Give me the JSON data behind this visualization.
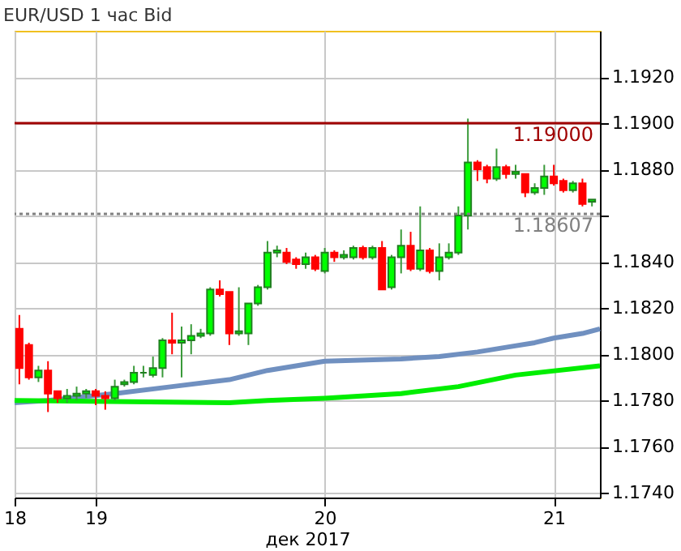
{
  "chart_data": {
    "type": "candlestick",
    "title": "EUR/USD 1 час Bid",
    "xlabel": "дек 2017",
    "x": [
      "2017-12-18T16:00",
      "2017-12-18T17:00",
      "2017-12-18T18:00",
      "2017-12-18T19:00",
      "2017-12-18T20:00",
      "2017-12-18T21:00",
      "2017-12-18T22:00",
      "2017-12-18T23:00",
      "2017-12-19T00:00",
      "2017-12-19T01:00",
      "2017-12-19T02:00",
      "2017-12-19T03:00",
      "2017-12-19T04:00",
      "2017-12-19T05:00",
      "2017-12-19T06:00",
      "2017-12-19T07:00",
      "2017-12-19T08:00",
      "2017-12-19T09:00",
      "2017-12-19T10:00",
      "2017-12-19T11:00",
      "2017-12-19T12:00",
      "2017-12-19T13:00",
      "2017-12-19T14:00",
      "2017-12-19T15:00",
      "2017-12-19T16:00",
      "2017-12-19T17:00",
      "2017-12-19T18:00",
      "2017-12-19T19:00",
      "2017-12-19T20:00",
      "2017-12-19T21:00",
      "2017-12-19T22:00",
      "2017-12-19T23:00",
      "2017-12-20T00:00",
      "2017-12-20T01:00",
      "2017-12-20T02:00",
      "2017-12-20T03:00",
      "2017-12-20T04:00",
      "2017-12-20T05:00",
      "2017-12-20T06:00",
      "2017-12-20T07:00",
      "2017-12-20T08:00",
      "2017-12-20T09:00",
      "2017-12-20T10:00",
      "2017-12-20T11:00",
      "2017-12-20T12:00",
      "2017-12-20T13:00",
      "2017-12-20T14:00",
      "2017-12-20T15:00",
      "2017-12-20T16:00",
      "2017-12-20T17:00",
      "2017-12-20T18:00",
      "2017-12-20T19:00",
      "2017-12-20T20:00",
      "2017-12-20T21:00",
      "2017-12-20T22:00",
      "2017-12-20T23:00",
      "2017-12-21T00:00",
      "2017-12-21T01:00",
      "2017-12-21T02:00",
      "2017-12-21T03:00",
      "2017-12-21T04:00"
    ],
    "ohlc": [
      [
        1.1811,
        1.1817,
        1.1787,
        1.1794
      ],
      [
        1.1804,
        1.1805,
        1.1789,
        1.179
      ],
      [
        1.179,
        1.1795,
        1.1788,
        1.1793
      ],
      [
        1.1793,
        1.1797,
        1.1775,
        1.1783
      ],
      [
        1.1784,
        1.1784,
        1.1779,
        1.1781
      ],
      [
        1.1781,
        1.1785,
        1.1779,
        1.1782
      ],
      [
        1.1782,
        1.1786,
        1.178,
        1.1783
      ],
      [
        1.1783,
        1.1785,
        1.1781,
        1.1784
      ],
      [
        1.1784,
        1.1785,
        1.1778,
        1.1782
      ],
      [
        1.1782,
        1.1784,
        1.1776,
        1.1781
      ],
      [
        1.1781,
        1.1789,
        1.178,
        1.1786
      ],
      [
        1.1787,
        1.1789,
        1.1786,
        1.1788
      ],
      [
        1.1788,
        1.1795,
        1.1787,
        1.1792
      ],
      [
        1.1792,
        1.1795,
        1.179,
        1.1792
      ],
      [
        1.1791,
        1.1799,
        1.179,
        1.1794
      ],
      [
        1.1794,
        1.1807,
        1.179,
        1.1806
      ],
      [
        1.1806,
        1.1818,
        1.18,
        1.1805
      ],
      [
        1.1805,
        1.1812,
        1.179,
        1.1806
      ],
      [
        1.1806,
        1.1813,
        1.18,
        1.1808
      ],
      [
        1.1808,
        1.1811,
        1.1807,
        1.1809
      ],
      [
        1.1809,
        1.1829,
        1.1808,
        1.1828
      ],
      [
        1.1828,
        1.1832,
        1.1825,
        1.1826
      ],
      [
        1.1827,
        1.1827,
        1.1804,
        1.1809
      ],
      [
        1.1809,
        1.1829,
        1.1808,
        1.181
      ],
      [
        1.1809,
        1.1822,
        1.1804,
        1.1822
      ],
      [
        1.1822,
        1.183,
        1.1821,
        1.1829
      ],
      [
        1.1829,
        1.1849,
        1.1828,
        1.1844
      ],
      [
        1.1844,
        1.1847,
        1.1842,
        1.1845
      ],
      [
        1.1844,
        1.1846,
        1.1839,
        1.184
      ],
      [
        1.1841,
        1.1842,
        1.1837,
        1.1839
      ],
      [
        1.1839,
        1.1844,
        1.1837,
        1.1842
      ],
      [
        1.1842,
        1.1843,
        1.1836,
        1.1837
      ],
      [
        1.1836,
        1.1846,
        1.1835,
        1.1844
      ],
      [
        1.1844,
        1.1845,
        1.184,
        1.1842
      ],
      [
        1.1842,
        1.1845,
        1.1841,
        1.1843
      ],
      [
        1.1842,
        1.1847,
        1.1841,
        1.1846
      ],
      [
        1.1846,
        1.1847,
        1.1841,
        1.1842
      ],
      [
        1.1842,
        1.1847,
        1.1841,
        1.1846
      ],
      [
        1.1846,
        1.1849,
        1.1828,
        1.1828
      ],
      [
        1.1829,
        1.1843,
        1.1828,
        1.1842
      ],
      [
        1.1842,
        1.1854,
        1.1835,
        1.1847
      ],
      [
        1.1847,
        1.1853,
        1.1836,
        1.1837
      ],
      [
        1.1837,
        1.1864,
        1.1836,
        1.1845
      ],
      [
        1.1845,
        1.1846,
        1.1835,
        1.1836
      ],
      [
        1.1836,
        1.1848,
        1.1832,
        1.1842
      ],
      [
        1.1842,
        1.1848,
        1.1841,
        1.1844
      ],
      [
        1.1844,
        1.1864,
        1.1843,
        1.186
      ],
      [
        1.186,
        1.1902,
        1.1854,
        1.1883
      ],
      [
        1.1883,
        1.1884,
        1.1875,
        1.188
      ],
      [
        1.1881,
        1.1882,
        1.1874,
        1.1876
      ],
      [
        1.1876,
        1.1889,
        1.1875,
        1.1881
      ],
      [
        1.1881,
        1.1882,
        1.1876,
        1.1878
      ],
      [
        1.1878,
        1.1882,
        1.1876,
        1.1879
      ],
      [
        1.1878,
        1.1878,
        1.1868,
        1.187
      ],
      [
        1.187,
        1.1874,
        1.1869,
        1.1872
      ],
      [
        1.1872,
        1.1882,
        1.1869,
        1.1877
      ],
      [
        1.1877,
        1.1882,
        1.1873,
        1.1874
      ],
      [
        1.1875,
        1.1876,
        1.187,
        1.1871
      ],
      [
        1.1871,
        1.1875,
        1.187,
        1.1874
      ],
      [
        1.1874,
        1.1876,
        1.1864,
        1.1865
      ],
      [
        1.1866,
        1.1867,
        1.1864,
        1.1867
      ]
    ],
    "series": [
      {
        "type": "line",
        "color": "#7090c0",
        "x": [
          "2017-12-18T15:30",
          "2017-12-18T19:00",
          "2017-12-19T02:00",
          "2017-12-19T08:00",
          "2017-12-19T14:00",
          "2017-12-19T18:00",
          "2017-12-20T00:00",
          "2017-12-20T08:00",
          "2017-12-20T12:00",
          "2017-12-20T16:00",
          "2017-12-20T19:00",
          "2017-12-20T22:00",
          "2017-12-21T00:00",
          "2017-12-21T03:00",
          "2017-12-21T04:50"
        ],
        "values": [
          1.1779,
          1.178,
          1.1783,
          1.1786,
          1.1789,
          1.1793,
          1.1797,
          1.1798,
          1.1799,
          1.1801,
          1.1803,
          1.1805,
          1.1807,
          1.1809,
          1.1811
        ]
      },
      {
        "type": "line",
        "color": "#00ee00",
        "x": [
          "2017-12-18T15:30",
          "2017-12-19T14:00",
          "2017-12-19T18:00",
          "2017-12-20T00:00",
          "2017-12-20T08:00",
          "2017-12-20T14:00",
          "2017-12-20T20:00",
          "2017-12-21T04:50"
        ],
        "values": [
          1.178,
          1.1779,
          1.178,
          1.1781,
          1.1783,
          1.1786,
          1.1791,
          1.1795
        ]
      }
    ],
    "xlim": [
      "2017-12-18T15:30",
      "2017-12-21T04:50"
    ],
    "xticks": [
      {
        "value": "2017-12-18T15:30",
        "label": "18"
      },
      {
        "value": "2017-12-19",
        "label": "19"
      },
      {
        "value": "2017-12-20",
        "label": "20"
      },
      {
        "value": "2017-12-21",
        "label": "21"
      }
    ],
    "ylim": [
      1.1738,
      1.194
    ],
    "yticks": [
      {
        "value": 1.174,
        "label": "1.1740"
      },
      {
        "value": 1.176,
        "label": "1.1760"
      },
      {
        "value": 1.178,
        "label": "1.1780"
      },
      {
        "value": 1.18,
        "label": "1.1800"
      },
      {
        "value": 1.182,
        "label": "1.1820"
      },
      {
        "value": 1.184,
        "label": "1.1840"
      },
      {
        "value": 1.186,
        "label": null
      },
      {
        "value": 1.188,
        "label": "1.1880"
      },
      {
        "value": 1.19,
        "label": "1.1900"
      },
      {
        "value": 1.192,
        "label": "1.1920"
      }
    ],
    "ref_lines": [
      {
        "axis": "y",
        "value": 1.19,
        "label": "1.19000",
        "color": "#a00000",
        "line_style": "solid"
      },
      {
        "axis": "y",
        "value": 1.18607,
        "label": "1.18607",
        "color": "#808080",
        "line_style": "dotted"
      }
    ],
    "grid": true
  }
}
